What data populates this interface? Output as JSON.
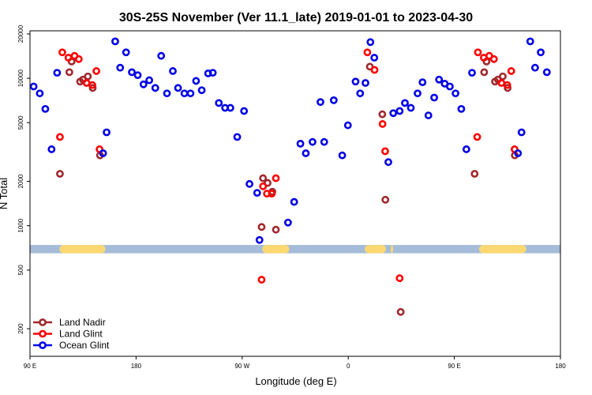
{
  "chart_data": {
    "type": "scatter",
    "title": "30S-25S November (Ver 11.1_late)   2019-01-01 to 2023-04-30",
    "xlabel": "Longitude (deg E)",
    "ylabel": "N Total",
    "x_scale": "linear, wraps from 90 E through 180 to 180 (450 degrees)",
    "xlim": [
      90,
      540
    ],
    "y_scale": "log",
    "ylim": [
      130,
      21000
    ],
    "x_ticks": [
      {
        "value": 90,
        "label": "90 E"
      },
      {
        "value": 180,
        "label": "180"
      },
      {
        "value": 270,
        "label": "90 W"
      },
      {
        "value": 360,
        "label": "0"
      },
      {
        "value": 450,
        "label": "90 E"
      },
      {
        "value": 540,
        "label": "180"
      }
    ],
    "y_ticks": [
      {
        "value": 200,
        "label": "200"
      },
      {
        "value": 500,
        "label": "500"
      },
      {
        "value": 1000,
        "label": "1000"
      },
      {
        "value": 2000,
        "label": "2000"
      },
      {
        "value": 5000,
        "label": "5000"
      },
      {
        "value": 10000,
        "label": "10000"
      },
      {
        "value": 20000,
        "label": "20000"
      }
    ],
    "land_band": {
      "y_range": [
        650,
        740
      ],
      "ocean_color": "#a4bcd8",
      "land_color": "#fdd872",
      "land_segments": [
        [
          115,
          154
        ],
        [
          287,
          310
        ],
        [
          374,
          392
        ],
        [
          396,
          398
        ],
        [
          471,
          511
        ]
      ]
    },
    "legend": {
      "position": "bottom-left",
      "entries": [
        "Land Nadir",
        "Land Glint",
        "Ocean Glint"
      ]
    },
    "series": [
      {
        "name": "Land Nadir",
        "color": "#a0282d",
        "points": [
          [
            115.4,
            2250
          ],
          [
            123.4,
            11000
          ],
          [
            125.3,
            13000
          ],
          [
            132.5,
            9500
          ],
          [
            134.9,
            9800
          ],
          [
            139.1,
            10300
          ],
          [
            143.2,
            8600
          ],
          [
            149.4,
            3000
          ],
          [
            286.5,
            980
          ],
          [
            287.7,
            2100
          ],
          [
            291.6,
            1950
          ],
          [
            295.6,
            1700
          ],
          [
            298.6,
            940
          ],
          [
            378.3,
            12000
          ],
          [
            388.9,
            5700
          ],
          [
            391.5,
            1500
          ],
          [
            404.5,
            260
          ],
          [
            467.2,
            2250
          ],
          [
            475.3,
            11000
          ],
          [
            477.3,
            13000
          ],
          [
            484.5,
            9500
          ],
          [
            486.9,
            9800
          ],
          [
            491.1,
            10300
          ],
          [
            495.2,
            8600
          ],
          [
            501.3,
            3000
          ]
        ]
      },
      {
        "name": "Land Glint",
        "color": "#ff0000",
        "points": [
          [
            115.4,
            4000
          ],
          [
            117.4,
            15000
          ],
          [
            122.6,
            13800
          ],
          [
            127.8,
            14200
          ],
          [
            131.4,
            13500
          ],
          [
            138.0,
            9300
          ],
          [
            142.9,
            9000
          ],
          [
            146.3,
            11200
          ],
          [
            149.0,
            3300
          ],
          [
            286.5,
            430
          ],
          [
            287.7,
            1850
          ],
          [
            291.0,
            1650
          ],
          [
            295.1,
            1650
          ],
          [
            298.6,
            2100
          ],
          [
            376.2,
            15000
          ],
          [
            382.3,
            11400
          ],
          [
            389.1,
            4900
          ],
          [
            391.3,
            3200
          ],
          [
            403.6,
            440
          ],
          [
            469.4,
            4000
          ],
          [
            470.0,
            15000
          ],
          [
            475.0,
            13800
          ],
          [
            479.6,
            14200
          ],
          [
            483.6,
            13500
          ],
          [
            490.0,
            9300
          ],
          [
            494.9,
            9000
          ],
          [
            498.3,
            11200
          ],
          [
            501.1,
            3300
          ]
        ]
      },
      {
        "name": "Ocean Glint",
        "color": "#0000e6",
        "points": [
          [
            93.1,
            8800
          ],
          [
            98.3,
            7900
          ],
          [
            103.0,
            6200
          ],
          [
            108.3,
            3300
          ],
          [
            113.0,
            10900
          ],
          [
            152.0,
            3100
          ],
          [
            155.0,
            4300
          ],
          [
            162.3,
            17800
          ],
          [
            166.5,
            11800
          ],
          [
            171.5,
            15000
          ],
          [
            176.4,
            11000
          ],
          [
            181.4,
            10500
          ],
          [
            186.3,
            9100
          ],
          [
            191.2,
            9700
          ],
          [
            196.3,
            8600
          ],
          [
            201.3,
            14200
          ],
          [
            206.2,
            7900
          ],
          [
            211.2,
            11200
          ],
          [
            215.6,
            8600
          ],
          [
            221.0,
            7900
          ],
          [
            226.2,
            7900
          ],
          [
            230.9,
            9600
          ],
          [
            235.7,
            8300
          ],
          [
            241.1,
            10800
          ],
          [
            245.1,
            10900
          ],
          [
            250.2,
            6800
          ],
          [
            255.5,
            6300
          ],
          [
            260.0,
            6300
          ],
          [
            265.8,
            4000
          ],
          [
            271.6,
            6000
          ],
          [
            276.2,
            1920
          ],
          [
            282.7,
            1670
          ],
          [
            284.7,
            800
          ],
          [
            308.9,
            1050
          ],
          [
            314.1,
            1450
          ],
          [
            319.4,
            3600
          ],
          [
            324.0,
            3100
          ],
          [
            329.7,
            3700
          ],
          [
            339.6,
            3700
          ],
          [
            336.4,
            6900
          ],
          [
            347.7,
            7100
          ],
          [
            354.9,
            3000
          ],
          [
            359.7,
            4800
          ],
          [
            366.2,
            9500
          ],
          [
            370.1,
            7900
          ],
          [
            374.6,
            9300
          ],
          [
            378.8,
            17600
          ],
          [
            382.1,
            13800
          ],
          [
            394.0,
            2700
          ],
          [
            398.2,
            5800
          ],
          [
            403.6,
            6000
          ],
          [
            408.1,
            6800
          ],
          [
            413.1,
            6300
          ],
          [
            418.8,
            7900
          ],
          [
            423.0,
            9400
          ],
          [
            428.0,
            5600
          ],
          [
            432.9,
            7400
          ],
          [
            437.0,
            9800
          ],
          [
            441.8,
            9200
          ],
          [
            446.2,
            8800
          ],
          [
            451.0,
            7900
          ],
          [
            455.9,
            6200
          ],
          [
            460.2,
            3300
          ],
          [
            465.0,
            10900
          ],
          [
            504.0,
            3100
          ],
          [
            507.0,
            4300
          ],
          [
            514.4,
            17800
          ],
          [
            518.5,
            11800
          ],
          [
            523.3,
            15000
          ],
          [
            528.5,
            11000
          ]
        ]
      }
    ]
  }
}
